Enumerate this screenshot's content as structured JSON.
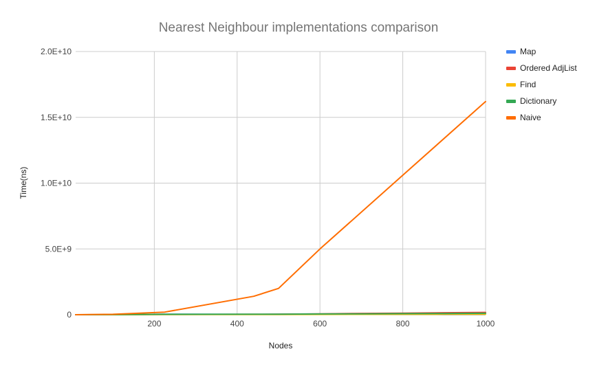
{
  "chart_data": {
    "type": "line",
    "title": "Nearest Neighbour implementations comparison",
    "xlabel": "Nodes",
    "ylabel": "Time(ns)",
    "xlim": [
      10,
      1000
    ],
    "ylim": [
      0,
      20000000000
    ],
    "x_ticks": [
      200,
      400,
      600,
      800,
      1000
    ],
    "x_tick_labels": [
      "200",
      "400",
      "600",
      "800",
      "1000"
    ],
    "y_ticks": [
      0,
      5000000000,
      10000000000,
      15000000000,
      20000000000
    ],
    "y_tick_labels": [
      "0",
      "5.0E+9",
      "1.0E+10",
      "1.5E+10",
      "2.0E+10"
    ],
    "grid": true,
    "legend_position": "right",
    "series": [
      {
        "name": "Map",
        "color": "#4285f4",
        "x": [
          10,
          100,
          225,
          440,
          500,
          600,
          700,
          800,
          900,
          1000
        ],
        "y": [
          0,
          2000000,
          40000000,
          25000000,
          30000000,
          35000000,
          45000000,
          55000000,
          65000000,
          75000000
        ]
      },
      {
        "name": "Ordered AdjList",
        "color": "#ea4335",
        "x": [
          10,
          100,
          225,
          440,
          500,
          600,
          700,
          800,
          900,
          1000
        ],
        "y": [
          0,
          2000000,
          20000000,
          30000000,
          40000000,
          70000000,
          100000000,
          120000000,
          150000000,
          180000000
        ]
      },
      {
        "name": "Find",
        "color": "#fbbc04",
        "x": [
          10,
          100,
          225,
          440,
          500,
          600,
          700,
          800,
          900,
          1000
        ],
        "y": [
          0,
          1000000,
          10000000,
          15000000,
          18000000,
          22000000,
          26000000,
          30000000,
          34000000,
          38000000
        ]
      },
      {
        "name": "Dictionary",
        "color": "#34a853",
        "x": [
          10,
          100,
          225,
          440,
          500,
          600,
          700,
          800,
          900,
          1000
        ],
        "y": [
          0,
          3000000,
          30000000,
          35000000,
          40000000,
          55000000,
          70000000,
          85000000,
          95000000,
          110000000
        ]
      },
      {
        "name": "Naive",
        "color": "#ff6d01",
        "x": [
          10,
          100,
          225,
          440,
          500,
          600,
          800,
          1000
        ],
        "y": [
          0,
          30000000,
          200000000,
          1400000000,
          2000000000,
          5000000000,
          10600000000,
          16200000000
        ]
      }
    ]
  }
}
